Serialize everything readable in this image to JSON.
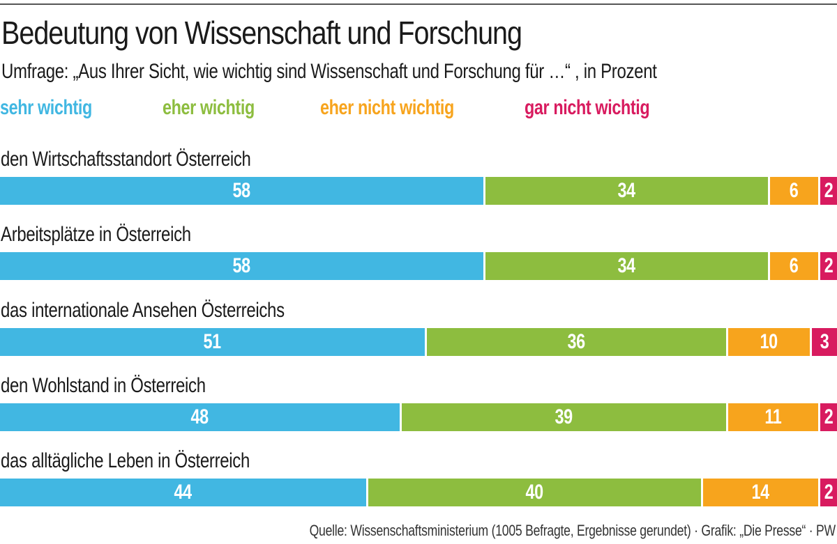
{
  "chart_data": {
    "type": "bar",
    "orientation": "horizontal-stacked-100",
    "title": "Bedeutung von Wissenschaft und Forschung",
    "subtitle": "Umfrage: „Aus Ihrer Sicht, wie wichtig sind Wissenschaft und Forschung für …“ , in Prozent",
    "unit": "Prozent",
    "legend_placement": "top",
    "categories": [
      "den Wirtschaftsstandort Österreich",
      "Arbeitsplätze in Österreich",
      "das internationale Ansehen Österreichs",
      "den Wohlstand in Österreich",
      "das alltägliche Leben in Österreich"
    ],
    "series": [
      {
        "name": "sehr wichtig",
        "color": "#41b7e2",
        "values": [
          58,
          58,
          51,
          48,
          44
        ]
      },
      {
        "name": "eher wichtig",
        "color": "#8dbd3f",
        "values": [
          34,
          34,
          36,
          39,
          40
        ]
      },
      {
        "name": "eher nicht wichtig",
        "color": "#f7a41d",
        "values": [
          6,
          6,
          10,
          11,
          14
        ]
      },
      {
        "name": "gar nicht wichtig",
        "color": "#d81b5f",
        "values": [
          2,
          2,
          3,
          2,
          2
        ]
      }
    ],
    "source": "Quelle: Wissenschaftsministerium (1005 Befragte, Ergebnisse gerundet) · Grafik: „Die Presse“ · PW"
  }
}
